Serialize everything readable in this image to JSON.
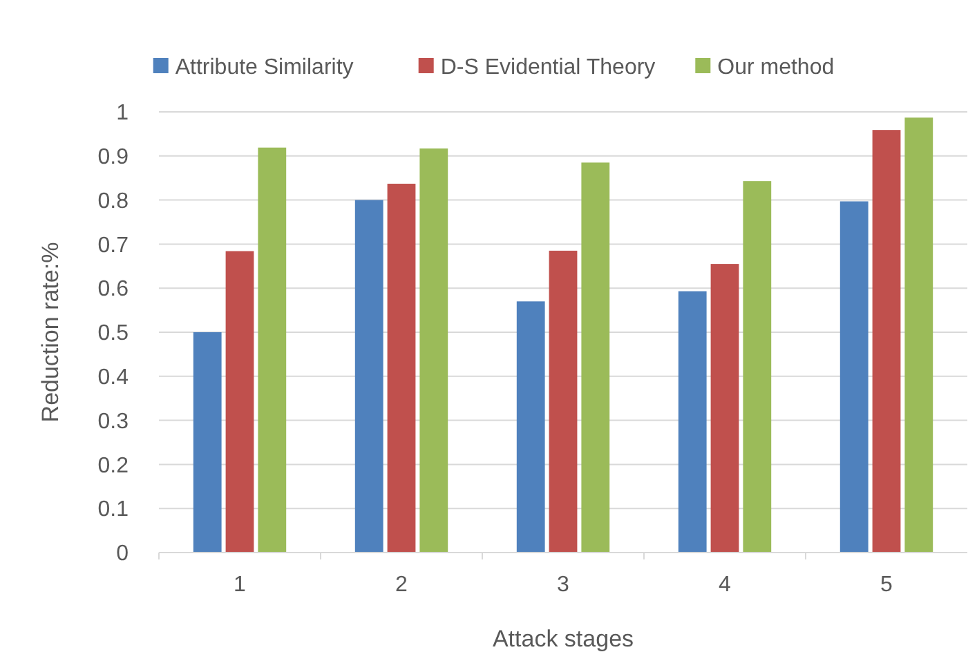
{
  "chart_data": {
    "type": "bar",
    "xlabel": "Attack stages",
    "ylabel": "Reduction rate:%",
    "categories": [
      "1",
      "2",
      "3",
      "4",
      "5"
    ],
    "series": [
      {
        "name": "Attribute Similarity",
        "color": "#4f81bd",
        "values": [
          0.5,
          0.8,
          0.57,
          0.593,
          0.797
        ]
      },
      {
        "name": "D-S Evidential Theory",
        "color": "#c0504d",
        "values": [
          0.684,
          0.837,
          0.685,
          0.655,
          0.959
        ]
      },
      {
        "name": "Our method",
        "color": "#9bbb59",
        "values": [
          0.919,
          0.917,
          0.885,
          0.843,
          0.987
        ]
      }
    ],
    "ylim": [
      0,
      1
    ],
    "yticks": [
      0,
      0.1,
      0.2,
      0.3,
      0.4,
      0.5,
      0.6,
      0.7,
      0.8,
      0.9,
      1
    ],
    "grid": "y",
    "legend": "top"
  }
}
